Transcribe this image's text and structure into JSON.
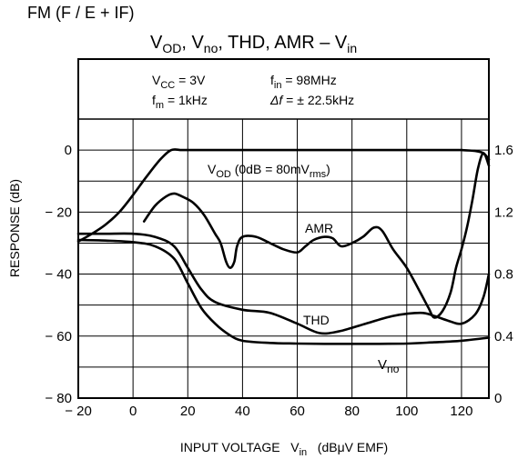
{
  "chart_data": {
    "type": "line",
    "mode": "FM (F / E + IF)",
    "title": {
      "main": "V",
      "main_sub": "OD",
      "r2": ", V",
      "r2_sub": "no",
      "r3": ", THD, AMR  –  V",
      "r3_sub": "in"
    },
    "conditions": {
      "vcc": {
        "p": "V",
        "sub": "CC",
        "s": " = 3V"
      },
      "fin": {
        "p": "f",
        "sub": "in",
        "s": " = 98MHz"
      },
      "fm": {
        "p": "f",
        "sub": "m",
        "s": " = 1kHz"
      },
      "df": {
        "p": "Δf",
        "s": " = ± 22.5kHz"
      }
    },
    "xlabel": {
      "p": "INPUT VOLTAGE   V",
      "sub": "in",
      "s": "   (dBμV EMF)"
    },
    "ylabel": "RESPONSE    (dB)",
    "xlim": [
      -20,
      130
    ],
    "ylim": [
      -80,
      10
    ],
    "y2lim": [
      0,
      1.8
    ],
    "x_ticks": [
      -20,
      0,
      20,
      40,
      60,
      80,
      100,
      120
    ],
    "x_tick_labels": [
      "− 20",
      "0",
      "20",
      "40",
      "60",
      "80",
      "100",
      "120"
    ],
    "y_ticks": [
      0,
      -20,
      -40,
      -60,
      -80
    ],
    "y_tick_labels": [
      "0",
      "− 20",
      "− 40",
      "− 60",
      "− 80"
    ],
    "y2_ticks": [
      1.6,
      1.2,
      0.8,
      0.4,
      0
    ],
    "y2_tick_labels": [
      "1.6",
      "1.2",
      "0.8",
      "0.4",
      "0"
    ],
    "grid": true,
    "series": [
      {
        "id": "vod",
        "name": "V",
        "name_sub": "OD",
        "name_suffix": " (0dB = 80mV",
        "name_suffix_sub": "rms",
        "name_end": ")",
        "x": [
          -20,
          -15,
          -10,
          -5,
          0,
          5,
          10,
          14,
          18,
          25,
          40,
          60,
          80,
          100,
          115,
          120,
          125,
          128,
          130
        ],
        "y": [
          -29.5,
          -27,
          -24,
          -20,
          -14.5,
          -8.5,
          -3,
          0,
          0,
          0,
          0,
          0,
          0,
          0,
          0,
          0,
          -0.3,
          -1,
          -3
        ]
      },
      {
        "id": "vno",
        "name": "V",
        "name_sub": "no",
        "x": [
          -20,
          -10,
          0,
          8,
          15,
          20,
          25,
          30,
          35,
          40,
          50,
          60,
          70,
          80,
          90,
          100,
          110,
          120,
          130
        ],
        "y": [
          -29,
          -29.2,
          -29.7,
          -31,
          -35,
          -43,
          -51,
          -56,
          -59.5,
          -61.5,
          -62.2,
          -62.4,
          -62.5,
          -62.5,
          -62.5,
          -62.4,
          -62,
          -61.5,
          -60.5
        ]
      },
      {
        "id": "thd",
        "name": "THD",
        "axis": "right",
        "x": [
          -20,
          -10,
          0,
          8,
          15,
          20,
          25,
          30,
          40,
          50,
          60,
          68,
          75,
          85,
          95,
          105,
          110,
          115,
          120,
          125,
          128,
          130
        ],
        "y": [
          1.06,
          1.06,
          1.06,
          1.04,
          0.98,
          0.84,
          0.7,
          0.62,
          0.57,
          0.55,
          0.48,
          0.42,
          0.43,
          0.48,
          0.53,
          0.55,
          0.53,
          0.5,
          0.48,
          0.54,
          0.65,
          0.8
        ]
      },
      {
        "id": "amr",
        "name": "AMR",
        "axis": "right",
        "x": [
          4,
          8,
          12,
          15,
          18,
          22,
          26,
          30,
          32,
          34,
          35.5,
          37,
          38,
          40,
          45,
          50,
          55,
          60,
          63,
          66,
          70,
          73,
          76,
          80,
          84,
          88,
          91,
          95,
          100,
          105,
          108,
          110,
          113,
          116,
          118,
          120,
          122,
          124,
          126,
          128,
          130
        ],
        "y": [
          1.14,
          1.24,
          1.3,
          1.32,
          1.3,
          1.26,
          1.18,
          1.06,
          1.0,
          0.88,
          0.84,
          0.88,
          0.98,
          1.04,
          1.04,
          1.0,
          0.96,
          0.94,
          0.98,
          1.02,
          1.04,
          1.03,
          0.98,
          1.0,
          1.04,
          1.1,
          1.08,
          0.96,
          0.84,
          0.68,
          0.58,
          0.52,
          0.56,
          0.68,
          0.84,
          0.96,
          1.1,
          1.28,
          1.48,
          1.58,
          1.5
        ]
      }
    ]
  }
}
